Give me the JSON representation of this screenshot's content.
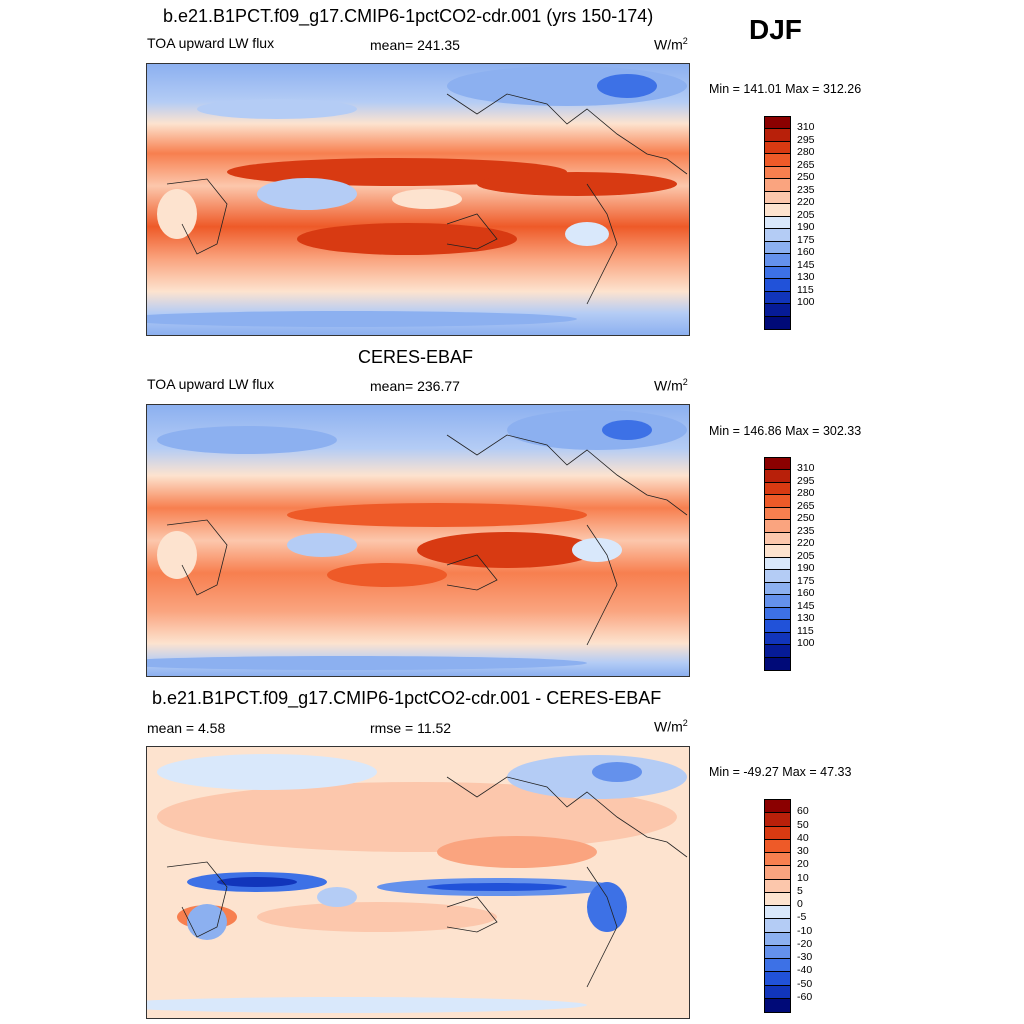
{
  "season": "DJF",
  "palette_abs": [
    "#8b0000",
    "#b8200a",
    "#d83a12",
    "#ee5a28",
    "#f77f4f",
    "#faa47f",
    "#fcc7ac",
    "#fde3cf",
    "#d9e8fb",
    "#b4ccf5",
    "#8cb0f0",
    "#6491ec",
    "#3d71e6",
    "#2152d9",
    "#1135bb",
    "#061b97",
    "#000a78"
  ],
  "palette_diff": [
    "#8b0000",
    "#b8200a",
    "#d83a12",
    "#ee5a28",
    "#f77f4f",
    "#faa47f",
    "#fcc7ac",
    "#fde3cf",
    "#d9e8fb",
    "#b4ccf5",
    "#8cb0f0",
    "#6491ec",
    "#3d71e6",
    "#2152d9",
    "#1135bb",
    "#000a78"
  ],
  "panels": [
    {
      "title": "b.e21.B1PCT.f09_g17.CMIP6-1pctCO2-cdr.001 (yrs 150-174)",
      "left_label": "TOA upward LW flux",
      "center_label": "mean= 241.35",
      "units": "W/m",
      "units_sup": "2",
      "minmax": "Min = 141.01 Max = 312.26",
      "ticks": [
        "310",
        "295",
        "280",
        "265",
        "250",
        "235",
        "220",
        "205",
        "190",
        "175",
        "160",
        "145",
        "130",
        "115",
        "100"
      ]
    },
    {
      "title": "CERES-EBAF",
      "left_label": "TOA upward LW flux",
      "center_label": "mean= 236.77",
      "units": "W/m",
      "units_sup": "2",
      "minmax": "Min = 146.86 Max = 302.33",
      "ticks": [
        "310",
        "295",
        "280",
        "265",
        "250",
        "235",
        "220",
        "205",
        "190",
        "175",
        "160",
        "145",
        "130",
        "115",
        "100"
      ]
    },
    {
      "title": "b.e21.B1PCT.f09_g17.CMIP6-1pctCO2-cdr.001 - CERES-EBAF",
      "left_label": "mean =   4.58",
      "center_label": "rmse =  11.52",
      "units": "W/m",
      "units_sup": "2",
      "minmax": "Min = -49.27 Max =  47.33",
      "ticks": [
        "60",
        "50",
        "40",
        "30",
        "20",
        "10",
        "5",
        "0",
        "-5",
        "-10",
        "-20",
        "-30",
        "-40",
        "-50",
        "-60"
      ]
    }
  ]
}
